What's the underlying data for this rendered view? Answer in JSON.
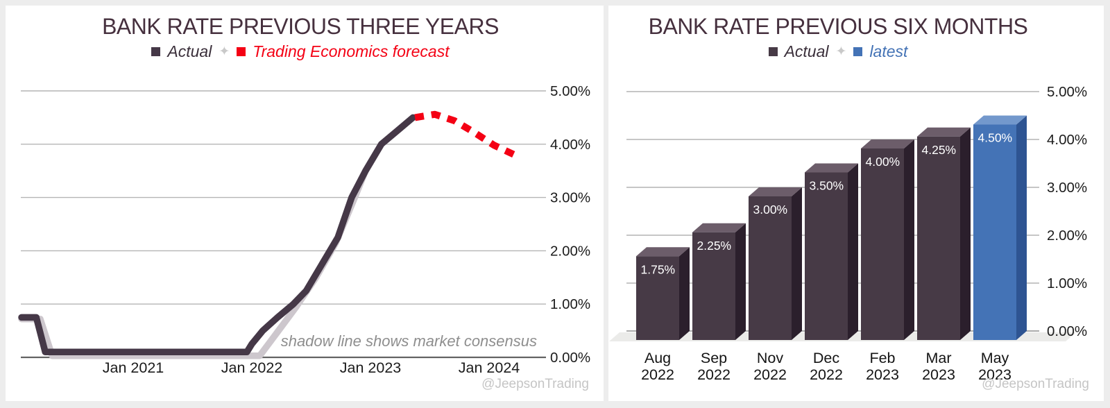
{
  "left_panel": {
    "title": "BANK RATE PREVIOUS THREE YEARS",
    "legend": {
      "actual_label": "Actual",
      "separator": "✦",
      "forecast_label": "Trading Economics forecast"
    },
    "annotation": "shadow line shows market consensus",
    "watermark": "@JeepsonTrading"
  },
  "right_panel": {
    "title": "BANK RATE PREVIOUS SIX MONTHS",
    "legend": {
      "actual_label": "Actual",
      "separator": "✦",
      "latest_label": "latest"
    },
    "watermark": "@JeepsonTrading"
  },
  "colors": {
    "actual_dark": "#453847",
    "shadow_gray": "#cdc7cd",
    "forecast_red": "#f40014",
    "latest_blue": "#4372b5",
    "bar_front": "#473a46",
    "bar_top": "#6c5d6a",
    "bar_side": "#2b1f2c",
    "latest_front": "#4473b6",
    "latest_top": "#7398cc",
    "latest_side": "#2e5492",
    "grid": "#b4b4b4",
    "grid_zero": "#636363",
    "tick_text": "#1c1c1c",
    "floor": "#ebebe9",
    "bar_label_text": "#ffffff"
  },
  "chart_data": [
    {
      "type": "line",
      "title": "BANK RATE PREVIOUS THREE YEARS",
      "x_unit": "months since Jan 2020",
      "ylim": [
        0,
        5
      ],
      "grid": true,
      "legend_position": "top",
      "yticks": [
        {
          "v": 0,
          "label": "0.00%"
        },
        {
          "v": 1,
          "label": "1.00%"
        },
        {
          "v": 2,
          "label": "2.00%"
        },
        {
          "v": 3,
          "label": "3.00%"
        },
        {
          "v": 4,
          "label": "4.00%"
        },
        {
          "v": 5,
          "label": "5.00%"
        }
      ],
      "xticks": [
        {
          "t": 12,
          "label": "Jan 2021"
        },
        {
          "t": 24,
          "label": "Jan 2022"
        },
        {
          "t": 36,
          "label": "Jan 2023"
        },
        {
          "t": 48,
          "label": "Jan 2024"
        }
      ],
      "annotation": "shadow line shows market consensus",
      "series": [
        {
          "name": "market consensus shadow",
          "role": "shadow",
          "points": [
            [
              0.7,
              0.72
            ],
            [
              2.6,
              0.72
            ],
            [
              3.8,
              0.03
            ],
            [
              24.8,
              0.03
            ],
            [
              26.5,
              0.45
            ],
            [
              28.5,
              0.95
            ],
            [
              30.5,
              1.5
            ],
            [
              32.5,
              2.15
            ],
            [
              34.3,
              2.95
            ],
            [
              35.5,
              3.5
            ],
            [
              37.1,
              4.0
            ]
          ]
        },
        {
          "name": "Actual",
          "role": "actual",
          "points": [
            [
              0.7,
              0.75
            ],
            [
              2.2,
              0.75
            ],
            [
              3.1,
              0.1
            ],
            [
              23.5,
              0.1
            ],
            [
              24.0,
              0.25
            ],
            [
              25.1,
              0.5
            ],
            [
              26.6,
              0.75
            ],
            [
              28.2,
              1.0
            ],
            [
              29.5,
              1.25
            ],
            [
              31.1,
              1.75
            ],
            [
              32.7,
              2.25
            ],
            [
              34.1,
              3.0
            ],
            [
              35.5,
              3.5
            ],
            [
              37.1,
              4.0
            ],
            [
              38.7,
              4.25
            ],
            [
              40.3,
              4.5
            ]
          ]
        },
        {
          "name": "Trading Economics forecast",
          "role": "forecast",
          "dashed": true,
          "points": [
            [
              40.5,
              4.5
            ],
            [
              42.5,
              4.56
            ],
            [
              44.5,
              4.44
            ],
            [
              46.5,
              4.22
            ],
            [
              48.5,
              3.98
            ],
            [
              50.8,
              3.78
            ]
          ]
        }
      ]
    },
    {
      "type": "bar",
      "title": "BANK RATE PREVIOUS SIX MONTHS",
      "categories": [
        "Aug 2022",
        "Sep 2022",
        "Nov 2022",
        "Dec 2022",
        "Feb 2023",
        "Mar 2023",
        "May 2023"
      ],
      "values": [
        1.75,
        2.25,
        3.0,
        3.5,
        4.0,
        4.25,
        4.5
      ],
      "bar_labels": [
        "1.75%",
        "2.25%",
        "3.00%",
        "3.50%",
        "4.00%",
        "4.25%",
        "4.50%"
      ],
      "latest_index": 6,
      "ylim": [
        0,
        5
      ],
      "grid": true,
      "style": "3d",
      "yticks": [
        {
          "v": 0,
          "label": "0.00%"
        },
        {
          "v": 1,
          "label": "1.00%"
        },
        {
          "v": 2,
          "label": "2.00%"
        },
        {
          "v": 3,
          "label": "3.00%"
        },
        {
          "v": 4,
          "label": "4.00%"
        },
        {
          "v": 5,
          "label": "5.00%"
        }
      ]
    }
  ]
}
